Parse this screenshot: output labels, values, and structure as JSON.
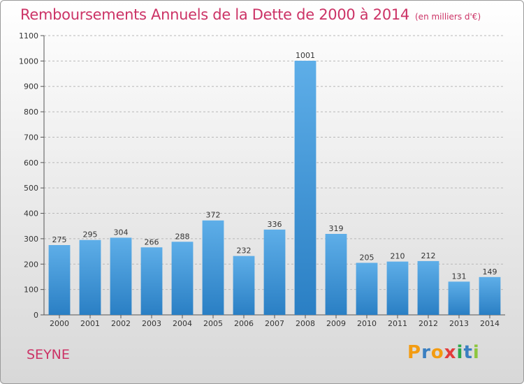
{
  "title": "Remboursements Annuels de la Dette de 2000 à 2014",
  "unit": "(en milliers d'€)",
  "commune": "SEYNE",
  "logo": {
    "text": "Proxiti",
    "letters": [
      "P",
      "r",
      "o",
      "x",
      "i",
      "t",
      "i"
    ],
    "colors": [
      "#f39c12",
      "#3a7fc1",
      "#f39c12",
      "#e23c3c",
      "#2ea84a",
      "#3a7fc1",
      "#8ec63f"
    ]
  },
  "colors": {
    "title": "#cc3366",
    "bar_top": "#5eaee8",
    "bar_bottom": "#2a7fc4",
    "grid": "#b8b8b8"
  },
  "chart_data": {
    "type": "bar",
    "title": "Remboursements Annuels de la Dette de 2000 à 2014",
    "xlabel": "",
    "ylabel": "",
    "categories": [
      "2000",
      "2001",
      "2002",
      "2003",
      "2004",
      "2005",
      "2006",
      "2007",
      "2008",
      "2009",
      "2010",
      "2011",
      "2012",
      "2013",
      "2014"
    ],
    "values": [
      275,
      295,
      304,
      266,
      288,
      372,
      232,
      336,
      1001,
      319,
      205,
      210,
      212,
      131,
      149
    ],
    "ylim": [
      0,
      1100
    ],
    "yticks": [
      0,
      100,
      200,
      300,
      400,
      500,
      600,
      700,
      800,
      900,
      1000,
      1100
    ],
    "grid": true,
    "grid_style": "dashed-horizontal"
  }
}
